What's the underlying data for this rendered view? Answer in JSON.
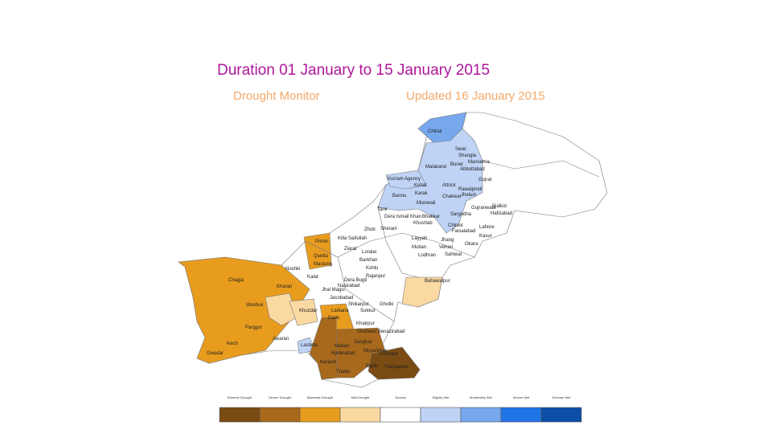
{
  "header": {
    "title": "Duration 01 January  to 15 January  2015",
    "left_subtitle": "Drought Monitor",
    "right_subtitle": "Updated 16 January 2015"
  },
  "map": {
    "districts": [
      "Chitral",
      "Swat",
      "Shangla",
      "Mansehra",
      "Abbottabad",
      "Malakand",
      "Buner",
      "Kurram Agency",
      "Kohat",
      "Attock",
      "Bannu",
      "Karak",
      "Chakwal",
      "Jhelum",
      "Rawalpindi",
      "Mianwali",
      "Gujrat",
      "Gujranwala",
      "Sialkot",
      "Sargodha",
      "Hafizabad",
      "Lahore",
      "Kasur",
      "Chiniot",
      "Faisalabad",
      "Jhang",
      "Okara",
      "Tank",
      "Dera Ismail Khan",
      "Khushab",
      "Bhakkar",
      "Layyah",
      "Zhob",
      "Sherani",
      "Killa Saifullah",
      "Pishin",
      "Quetta",
      "Ziarat",
      "Loralai",
      "Barkhan",
      "Mastung",
      "Noshki",
      "Chagai",
      "Kharan",
      "Kalat",
      "Washuk",
      "Khuzdar",
      "Panjgur",
      "Kech",
      "Gwadar",
      "Awaran",
      "Lasbela",
      "Kohlu",
      "Dera Bugti",
      "Rajanpur",
      "Jhal Magsi",
      "Nasirabad",
      "Jacobabad",
      "Shikarpur",
      "Ghotki",
      "Sukkur",
      "Larkana",
      "Dadu",
      "Khairpur",
      "Shaheed Benazirabad",
      "Sanghar",
      "Matiari",
      "Hyderabad",
      "Mirpurkhas",
      "Umerkot",
      "Tharparkar",
      "Badin",
      "Thatta",
      "Karachi",
      "Multan",
      "Vehari",
      "Sahiwal",
      "Lodhran",
      "Bahawalpur"
    ]
  },
  "legend": {
    "items": [
      {
        "label": "Extreme Drought",
        "color": "#7a4b12"
      },
      {
        "label": "Severe Drought",
        "color": "#a8691c"
      },
      {
        "label": "Moderate Drought",
        "color": "#e89c1e"
      },
      {
        "label": "Mild Drought",
        "color": "#fad9a2"
      },
      {
        "label": "Normal",
        "color": "#ffffff"
      },
      {
        "label": "Slightly Wet",
        "color": "#bed3f6"
      },
      {
        "label": "Moderately Wet",
        "color": "#77a8ee"
      },
      {
        "label": "Severe Wet",
        "color": "#1f74e6"
      },
      {
        "label": "Extreme Wet",
        "color": "#0c4ea8"
      }
    ]
  }
}
